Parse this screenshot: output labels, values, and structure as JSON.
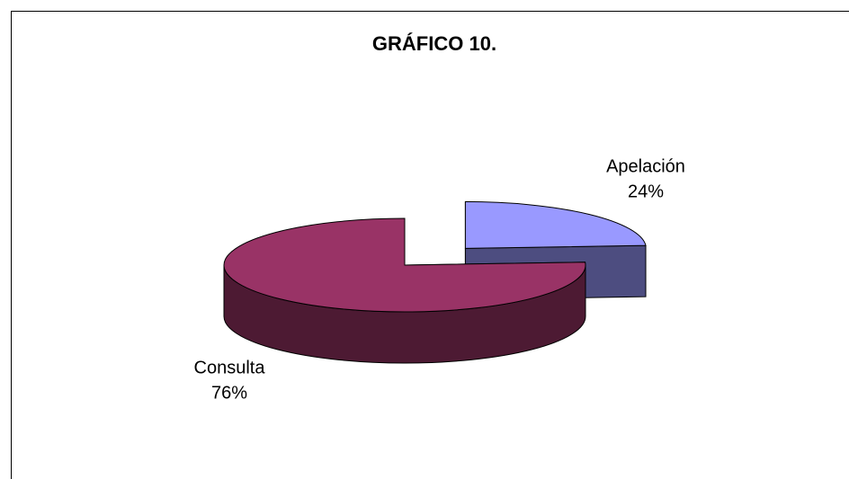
{
  "chart_data": {
    "type": "pie3d",
    "title": "GRÁFICO 10.",
    "categories": [
      "Apelación",
      "Consulta"
    ],
    "values": [
      24,
      76
    ],
    "value_labels": [
      "24%",
      "76%"
    ],
    "colors": [
      "#9999ff",
      "#993366"
    ]
  }
}
